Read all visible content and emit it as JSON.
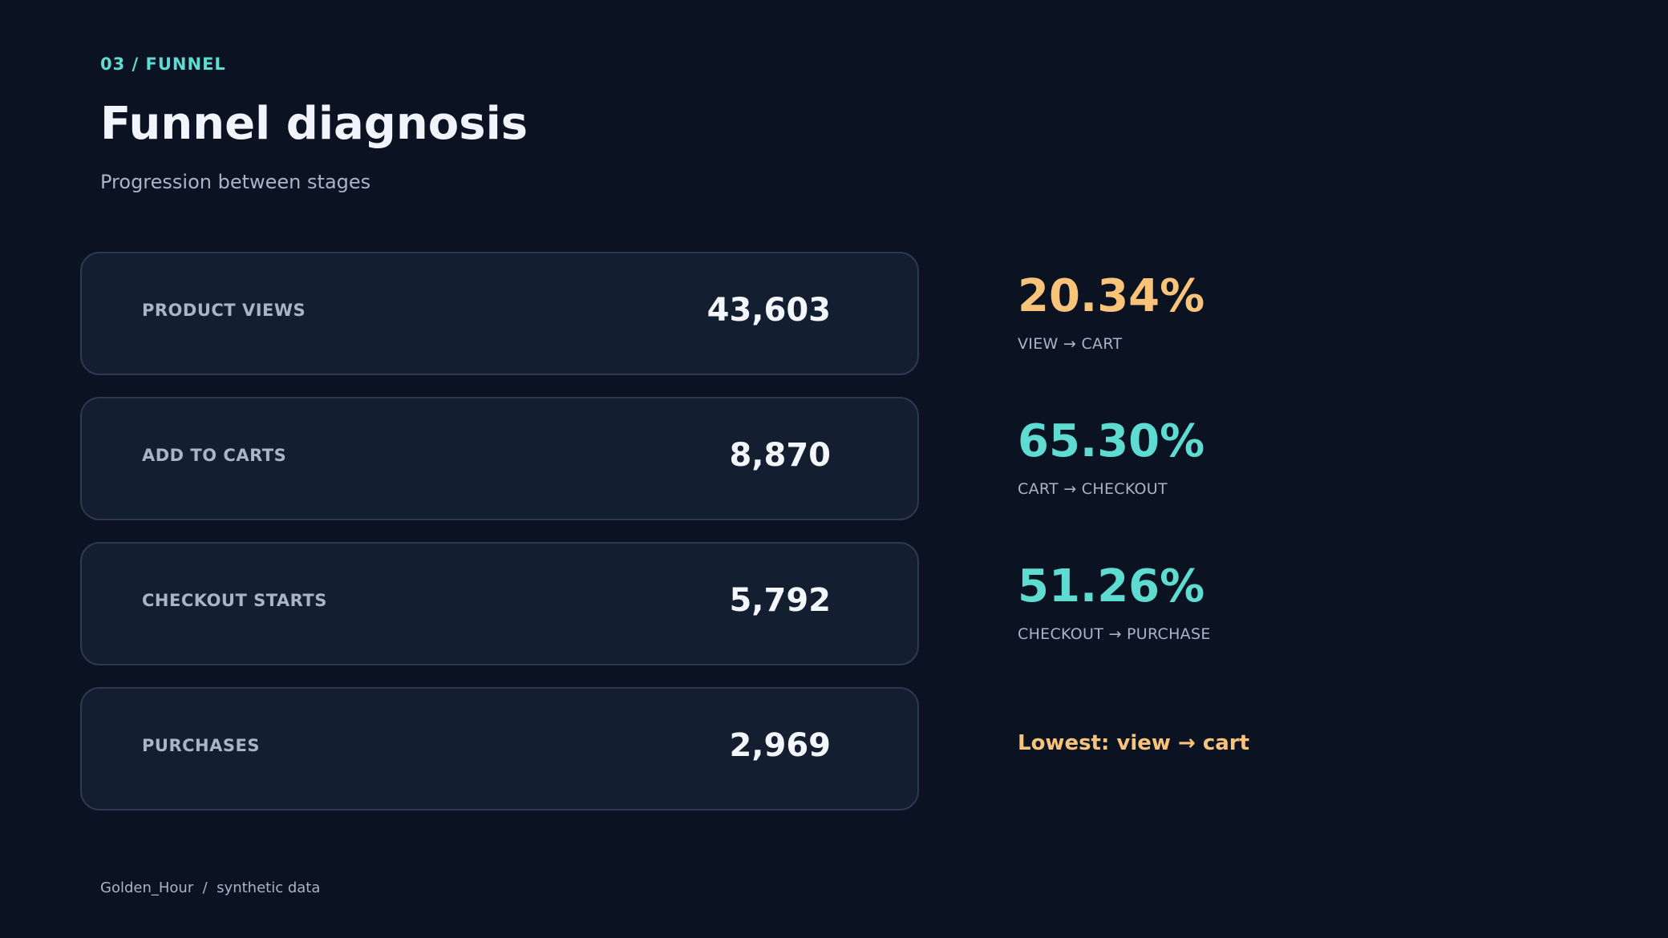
{
  "header": {
    "eyebrow": "03 / FUNNEL",
    "title": "Funnel diagnosis",
    "subtitle": "Progression between stages"
  },
  "stages": [
    {
      "label": "PRODUCT VIEWS",
      "value": "43,603"
    },
    {
      "label": "ADD TO CARTS",
      "value": "8,870"
    },
    {
      "label": "CHECKOUT STARTS",
      "value": "5,792"
    },
    {
      "label": "PURCHASES",
      "value": "2,969"
    }
  ],
  "conversions": [
    {
      "rate": "20.34%",
      "label": "VIEW → CART",
      "color": "#f9c47a"
    },
    {
      "rate": "65.30%",
      "label": "CART → CHECKOUT",
      "color": "#5fdcd1"
    },
    {
      "rate": "51.26%",
      "label": "CHECKOUT → PURCHASE",
      "color": "#5fdcd1"
    }
  ],
  "callout": "Lowest: view → cart",
  "footer": "Golden_Hour  /  synthetic data",
  "colors": {
    "background": "#0b1221",
    "card": "#131e30",
    "accent_teal": "#5fdcd1",
    "accent_amber": "#f9c47a"
  }
}
